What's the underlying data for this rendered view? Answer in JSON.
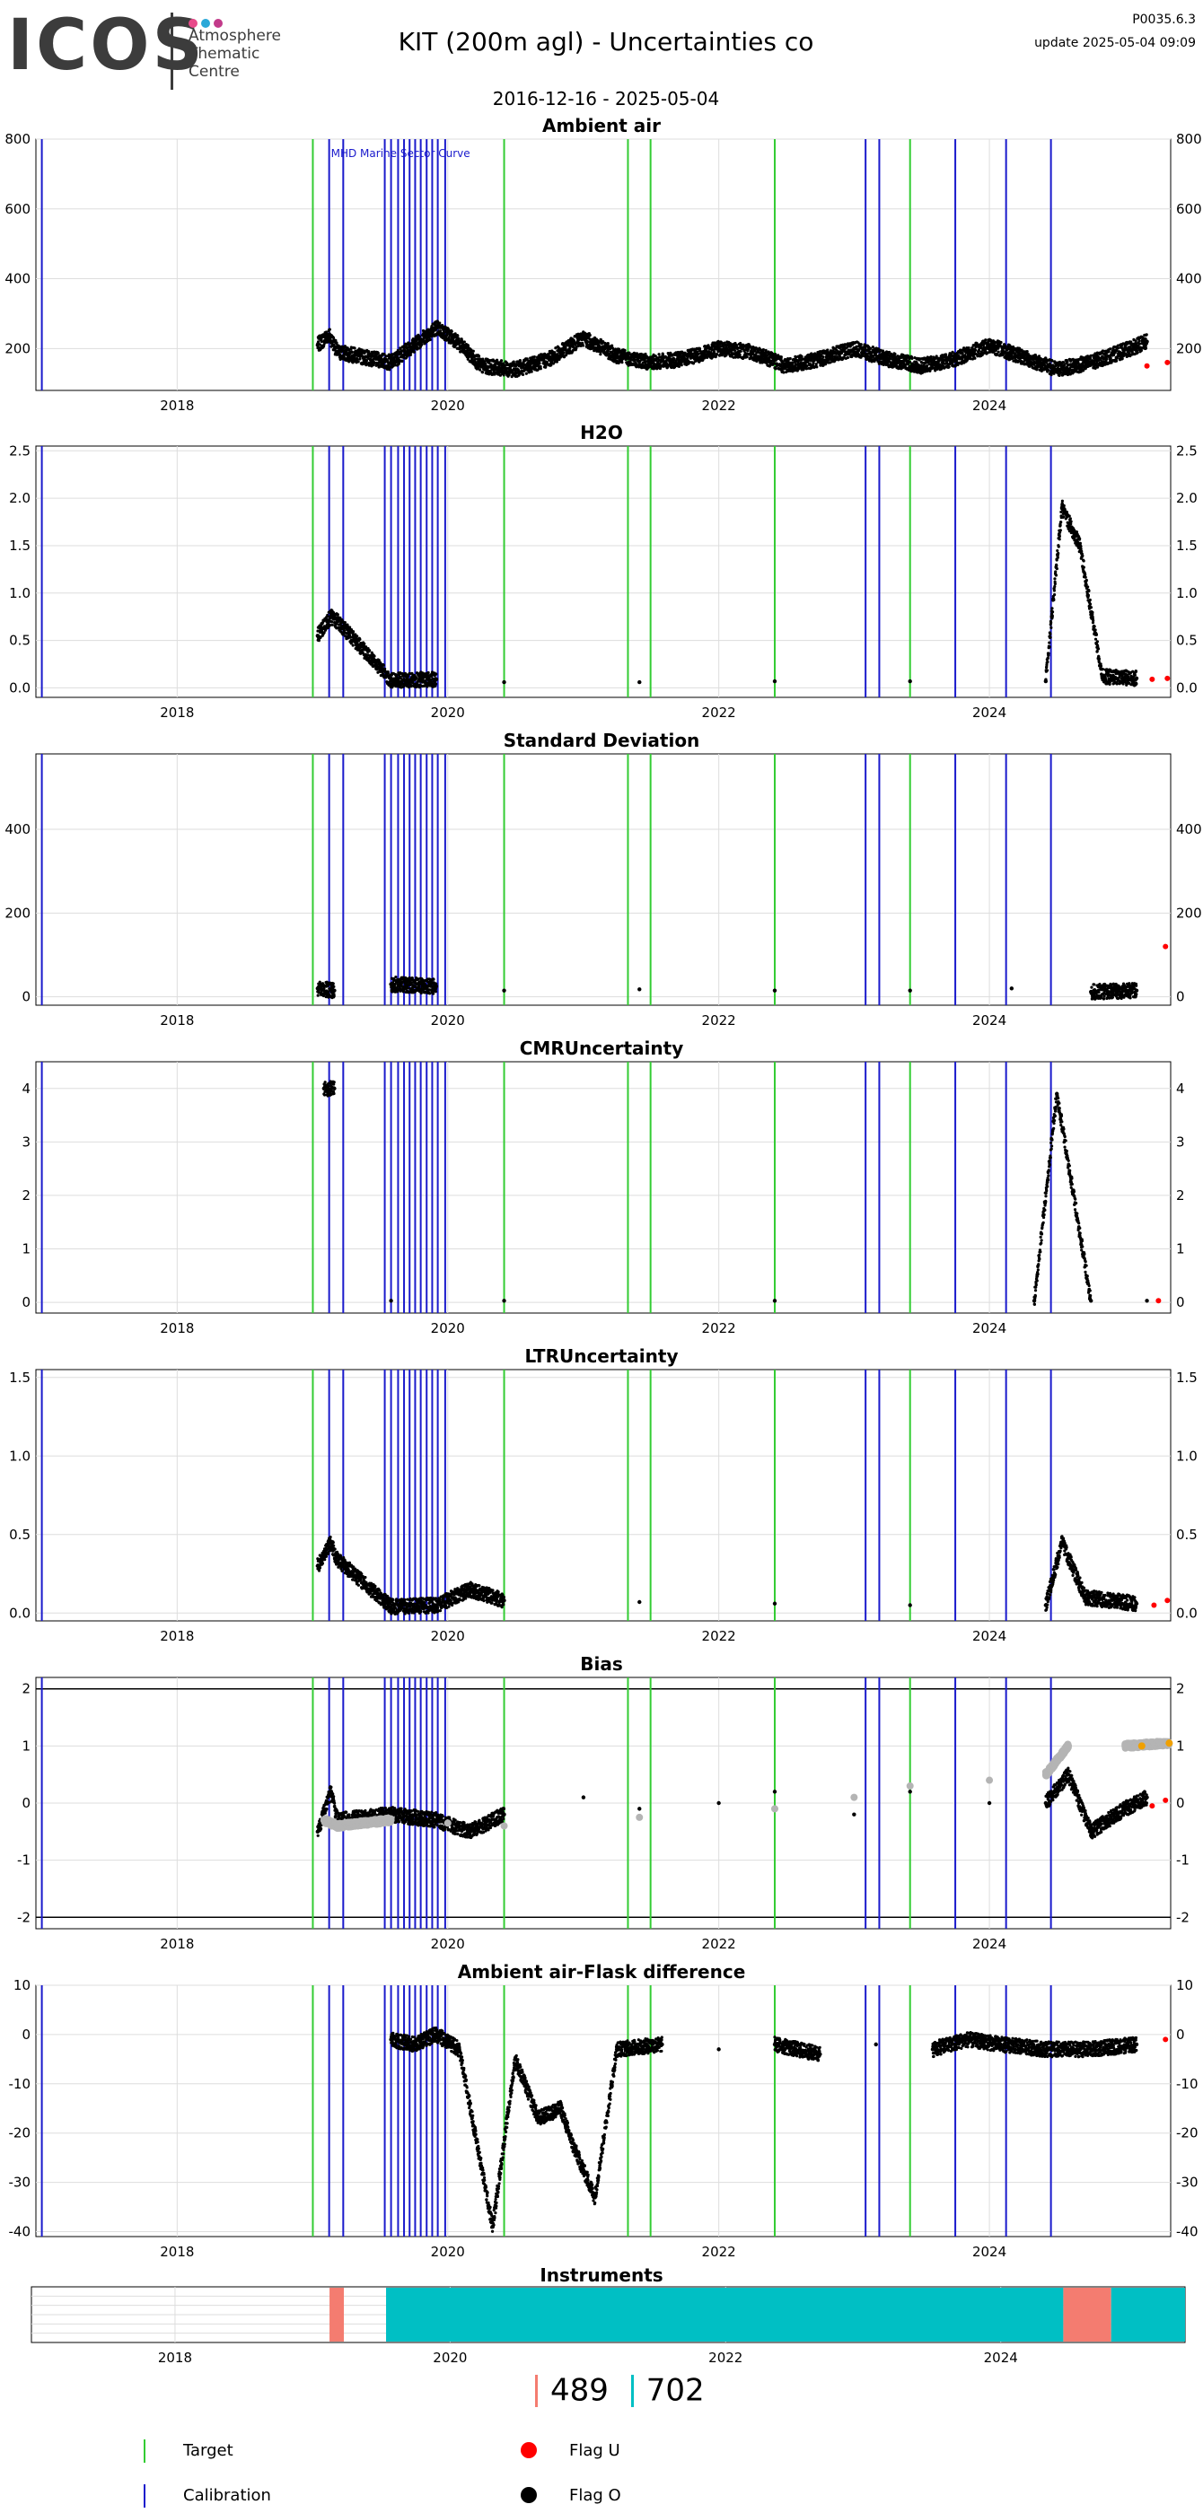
{
  "header": {
    "logo_text": "ICOS",
    "logo_dots": [
      "#e84a8a",
      "#2aa8d8",
      "#c23a8a"
    ],
    "logo_sub": [
      "Atmosphere",
      "Thematic",
      "Centre"
    ],
    "title": "KIT  (200m agl) - Uncertainties co",
    "run_id": "P0035.6.3",
    "update": "update  2025-05-04 09:09",
    "date_range": "2016-12-16 - 2025-05-04"
  },
  "colors": {
    "target_line": "#33cc33",
    "calibration_line": "#1a1acc",
    "flag_u": "#ff0000",
    "flag_o": "#000000",
    "bias_model": "#b4b4b4",
    "bias_orange": "#f0a000",
    "instrument_a": "#f47c70",
    "instrument_b": "#00bfc4",
    "grid": "#dddddd"
  },
  "chart_data": [
    {
      "type": "scatter",
      "title": "Ambient air",
      "xlim": [
        "2016-12-16",
        "2025-05-04"
      ],
      "x_ticks": [
        "2018",
        "2020",
        "2022",
        "2024"
      ],
      "ylim": [
        80,
        800
      ],
      "y_ticks": [
        200,
        400,
        600,
        800
      ],
      "annotation": "MHD Marine Sector Curve",
      "series": [
        {
          "x": [
            "2019-01-15",
            "2019-02-15",
            "2019-03-10",
            "2019-08-01",
            "2019-10-01",
            "2019-12-01",
            "2020-01-15",
            "2020-04-01",
            "2020-07-01",
            "2020-10-01",
            "2021-01-01",
            "2021-04-01",
            "2021-07-01",
            "2021-10-01",
            "2022-01-01",
            "2022-04-01",
            "2022-07-01",
            "2022-10-01",
            "2023-01-01",
            "2023-04-01",
            "2023-07-01",
            "2023-10-01",
            "2024-01-01",
            "2024-04-01",
            "2024-07-01",
            "2024-10-01",
            "2025-01-15",
            "2025-03-01"
          ],
          "y": [
            210,
            240,
            190,
            160,
            210,
            260,
            230,
            150,
            140,
            170,
            230,
            180,
            160,
            170,
            200,
            190,
            150,
            170,
            200,
            170,
            150,
            170,
            210,
            175,
            140,
            160,
            200,
            220
          ]
        }
      ],
      "flag_u_x": [
        "2025-03-01",
        "2025-04-25"
      ],
      "flag_u_y": [
        150,
        160
      ]
    },
    {
      "type": "scatter",
      "title": "H2O",
      "xlim": [
        "2016-12-16",
        "2025-05-04"
      ],
      "x_ticks": [
        "2018",
        "2020",
        "2022",
        "2024"
      ],
      "ylim": [
        -0.1,
        2.55
      ],
      "y_ticks": [
        "0.0",
        "0.5",
        "1.0",
        "1.5",
        "2.0",
        "2.5"
      ],
      "series": [
        {
          "x": [
            "2019-01-15",
            "2019-02-20",
            "2019-03-10",
            "2019-08-01",
            "2019-12-01",
            "2020-06-01",
            "2021-06-01",
            "2022-06-01",
            "2023-06-01",
            "2024-06-01",
            "2024-07-15",
            "2024-09-01",
            "2024-11-01",
            "2025-02-01"
          ],
          "y": [
            0.55,
            0.75,
            0.7,
            0.08,
            0.09,
            0.06,
            0.06,
            0.07,
            0.07,
            0.07,
            1.9,
            1.5,
            0.12,
            0.1
          ]
        }
      ],
      "flag_u_x": [
        "2025-03-15",
        "2025-04-25"
      ],
      "flag_u_y": [
        0.09,
        0.1
      ]
    },
    {
      "type": "scatter",
      "title": "Standard Deviation",
      "xlim": [
        "2016-12-16",
        "2025-05-04"
      ],
      "x_ticks": [
        "2018",
        "2020",
        "2022",
        "2024"
      ],
      "ylim": [
        -20,
        580
      ],
      "y_ticks": [
        0,
        200,
        400
      ],
      "series": [
        {
          "x": [
            "2019-01-15",
            "2019-03-01",
            "2019-08-01",
            "2019-12-01",
            "2020-06-01",
            "2021-06-01",
            "2022-06-01",
            "2023-06-01",
            "2024-03-01",
            "2024-10-01",
            "2025-02-01"
          ],
          "y": [
            20,
            15,
            30,
            25,
            15,
            18,
            15,
            15,
            20,
            12,
            15
          ]
        }
      ],
      "flag_u_x": [
        "2025-04-20"
      ],
      "flag_u_y": [
        120
      ]
    },
    {
      "type": "scatter",
      "title": "CMRUncertainty",
      "xlim": [
        "2016-12-16",
        "2025-05-04"
      ],
      "x_ticks": [
        "2018",
        "2020",
        "2022",
        "2024"
      ],
      "ylim": [
        -0.2,
        4.5
      ],
      "y_ticks": [
        0,
        1,
        2,
        3,
        4
      ],
      "series": [
        {
          "x": [
            "2019-02-01",
            "2019-03-01",
            "2019-08-01",
            "2020-06-01",
            "2022-06-01",
            "2024-05-01",
            "2024-07-01",
            "2024-10-01",
            "2025-03-01"
          ],
          "y": [
            4.0,
            4.0,
            0.03,
            0.03,
            0.03,
            0.03,
            3.9,
            0.03,
            0.03
          ]
        }
      ],
      "flag_u_x": [
        "2025-04-01"
      ],
      "flag_u_y": [
        0.03
      ]
    },
    {
      "type": "scatter",
      "title": "LTRUncertainty",
      "xlim": [
        "2016-12-16",
        "2025-05-04"
      ],
      "x_ticks": [
        "2018",
        "2020",
        "2022",
        "2024"
      ],
      "ylim": [
        -0.05,
        1.55
      ],
      "y_ticks": [
        "0.0",
        "0.5",
        "1.0",
        "1.5"
      ],
      "series": [
        {
          "x": [
            "2019-01-15",
            "2019-02-20",
            "2019-03-05",
            "2019-08-01",
            "2019-12-01",
            "2020-03-01",
            "2020-06-01",
            "2021-06-01",
            "2022-06-01",
            "2023-06-01",
            "2024-06-01",
            "2024-07-15",
            "2024-09-15",
            "2025-02-01"
          ],
          "y": [
            0.3,
            0.45,
            0.35,
            0.04,
            0.05,
            0.15,
            0.08,
            0.07,
            0.06,
            0.05,
            0.05,
            0.45,
            0.1,
            0.06
          ]
        }
      ],
      "flag_u_x": [
        "2025-03-20",
        "2025-04-25"
      ],
      "flag_u_y": [
        0.05,
        0.08
      ]
    },
    {
      "type": "scatter",
      "title": "Bias",
      "xlim": [
        "2016-12-16",
        "2025-05-04"
      ],
      "x_ticks": [
        "2018",
        "2020",
        "2022",
        "2024"
      ],
      "ylim": [
        -2.2,
        2.2
      ],
      "y_ticks": [
        -2,
        -1,
        0,
        1,
        2
      ],
      "hlines": [
        -2,
        2
      ],
      "series": [
        {
          "name": "measured",
          "x": [
            "2019-01-15",
            "2019-02-20",
            "2019-03-10",
            "2019-08-01",
            "2019-12-01",
            "2020-03-01",
            "2020-06-01",
            "2021-01-01",
            "2021-06-01",
            "2022-01-01",
            "2022-06-01",
            "2023-01-01",
            "2023-06-01",
            "2024-01-01",
            "2024-06-01",
            "2024-08-01",
            "2024-10-01",
            "2025-01-01",
            "2025-03-01"
          ],
          "y": [
            -0.5,
            0.2,
            -0.3,
            -0.2,
            -0.3,
            -0.5,
            -0.2,
            0.1,
            -0.1,
            0.0,
            0.2,
            -0.2,
            0.2,
            0.0,
            0.0,
            0.5,
            -0.5,
            -0.1,
            0.1
          ]
        },
        {
          "name": "model",
          "x": [
            "2019-02-01",
            "2019-03-10",
            "2019-08-01",
            "2020-01-01",
            "2020-06-01",
            "2021-06-01",
            "2022-06-01",
            "2023-01-01",
            "2023-06-01",
            "2024-01-01",
            "2024-06-01",
            "2024-08-01",
            "2025-01-01",
            "2025-04-30"
          ],
          "y": [
            -0.3,
            -0.4,
            -0.3,
            -0.35,
            -0.4,
            -0.25,
            -0.1,
            0.1,
            0.3,
            0.4,
            0.5,
            1.0,
            1.0,
            1.05
          ]
        }
      ],
      "flag_u_x": [
        "2025-03-15",
        "2025-04-20"
      ],
      "flag_u_y": [
        -0.05,
        0.05
      ],
      "orange_x": [
        "2025-02-15",
        "2025-04-30"
      ],
      "orange_y": [
        1.0,
        1.05
      ]
    },
    {
      "type": "scatter",
      "title": "Ambient air-Flask difference",
      "xlim": [
        "2016-12-16",
        "2025-05-04"
      ],
      "x_ticks": [
        "2018",
        "2020",
        "2022",
        "2024"
      ],
      "ylim": [
        -41,
        10
      ],
      "y_ticks": [
        -40,
        -30,
        -20,
        -10,
        0,
        10
      ],
      "series": [
        {
          "x": [
            "2019-08-01",
            "2019-10-01",
            "2019-12-01",
            "2020-02-01",
            "2020-05-01",
            "2020-07-01",
            "2020-09-01",
            "2020-11-01",
            "2020-12-01",
            "2021-02-01",
            "2021-04-01",
            "2021-08-01",
            "2022-01-01",
            "2022-06-01",
            "2022-10-01",
            "2023-03-01",
            "2023-08-01",
            "2023-11-01",
            "2024-02-01",
            "2024-06-01",
            "2024-10-01",
            "2025-02-01"
          ],
          "y": [
            -1,
            -2,
            0,
            -3,
            -39,
            -5,
            -17,
            -15,
            -22,
            -33,
            -3,
            -2,
            -3,
            -2,
            -4,
            -2,
            -3,
            -1,
            -2,
            -3,
            -3,
            -2
          ]
        }
      ],
      "flag_u_x": [
        "2025-04-20"
      ],
      "flag_u_y": [
        -1
      ]
    },
    {
      "type": "bar",
      "title": "Instruments",
      "xlim": [
        "2016-12-16",
        "2025-05-04"
      ],
      "x_ticks": [
        "2018",
        "2020",
        "2022",
        "2024"
      ],
      "segments": [
        {
          "start": "2019-02-15",
          "end": "2019-03-25",
          "instrument": "489"
        },
        {
          "start": "2019-07-15",
          "end": "2024-06-15",
          "instrument": "702"
        },
        {
          "start": "2024-06-15",
          "end": "2024-10-20",
          "instrument": "489"
        },
        {
          "start": "2024-10-20",
          "end": "2025-05-04",
          "instrument": "702"
        }
      ]
    }
  ],
  "target_lines": [
    "2019-01-02",
    "2020-06-01",
    "2021-05-01",
    "2021-07-01",
    "2022-06-01",
    "2023-06-01"
  ],
  "calibration_lines": [
    "2017-01-01",
    "2019-02-15",
    "2019-03-25",
    "2019-07-15",
    "2019-08-01",
    "2019-08-20",
    "2019-09-05",
    "2019-09-20",
    "2019-10-05",
    "2019-10-20",
    "2019-11-05",
    "2019-11-20",
    "2019-12-05",
    "2019-12-25",
    "2023-02-01",
    "2023-03-10",
    "2023-10-01",
    "2024-02-15",
    "2024-06-15"
  ],
  "instrument_counts": {
    "a": "489",
    "b": "702"
  },
  "legend": {
    "target": "Target",
    "calibration": "Calibration",
    "flag_u": "Flag U",
    "flag_o": "Flag O"
  }
}
